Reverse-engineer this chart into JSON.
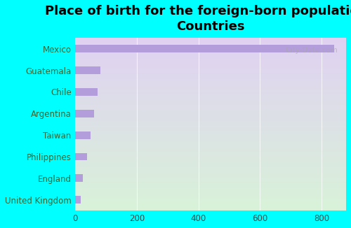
{
  "title": "Place of birth for the foreign-born population -\nCountries",
  "categories": [
    "United Kingdom",
    "England",
    "Philippines",
    "Taiwan",
    "Argentina",
    "Chile",
    "Guatemala",
    "Mexico"
  ],
  "values": [
    18,
    24,
    38,
    50,
    62,
    72,
    82,
    840
  ],
  "bar_color": "#b39ddb",
  "background_color": "#00ffff",
  "plot_bg_topleft": "#ddeedd",
  "plot_bg_topright": "#d4ecd4",
  "plot_bg_bottomleft": "#e8d8f0",
  "plot_bg_bottomright": "#d8eed8",
  "xlabel": "",
  "ylabel": "",
  "xlim": [
    0,
    880
  ],
  "xticks": [
    0,
    200,
    400,
    600,
    800
  ],
  "title_fontsize": 13,
  "tick_label_fontsize": 8.5,
  "watermark": "City-Data.com"
}
